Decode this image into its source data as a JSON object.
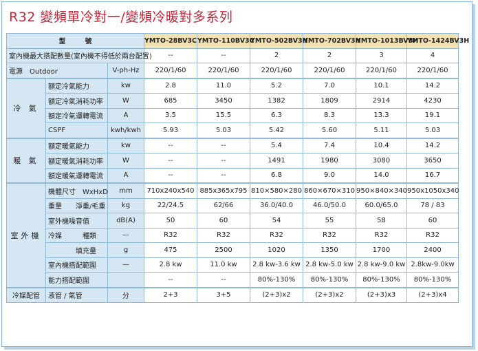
{
  "title": "R32  變頻單冷對一/變頻冷暖對多系列",
  "header": {
    "label": "型　　　號",
    "models": [
      "YMTO-28BV3C",
      "YMTO-110BV3C",
      "YMTO-502BV3H",
      "YMTO-702BV3H",
      "YMTO-1013BV3H",
      "YMTO-1424BV3H"
    ]
  },
  "rows": {
    "indoor_max": {
      "label": "室內機最大搭配數量(室內機不得低於兩台配置)",
      "values": [
        "--",
        "--",
        "2",
        "2",
        "3",
        "4"
      ]
    },
    "power": {
      "label1": "電源　Outdoor",
      "unit": "V-ph-Hz",
      "values": [
        "220/1/60",
        "220/1/60",
        "220/1/60",
        "220/1/60",
        "220/1/60",
        "220/1/60"
      ]
    },
    "cool": {
      "group": "冷 氣",
      "items": [
        {
          "label": "額定冷氣能力",
          "unit": "kw",
          "values": [
            "2.8",
            "11.0",
            "5.2",
            "7.0",
            "10.1",
            "14.2"
          ]
        },
        {
          "label": "額定冷氣消耗功率",
          "unit": "W",
          "values": [
            "685",
            "3450",
            "1382",
            "1809",
            "2914",
            "4230"
          ]
        },
        {
          "label": "額定冷氣運轉電流",
          "unit": "A",
          "values": [
            "3.5",
            "15.5",
            "6.3",
            "8.3",
            "13.3",
            "19.1"
          ]
        },
        {
          "label": "CSPF",
          "unit": "kwh/kwh",
          "values": [
            "5.93",
            "5.03",
            "5.42",
            "5.60",
            "5.11",
            "5.03"
          ]
        }
      ]
    },
    "heat": {
      "group": "暖 氣",
      "items": [
        {
          "label": "額定暖氣能力",
          "unit": "kw",
          "values": [
            "--",
            "--",
            "5.4",
            "7.4",
            "10.4",
            "14.2"
          ]
        },
        {
          "label": "額定暖氣消耗功率",
          "unit": "W",
          "values": [
            "--",
            "--",
            "1491",
            "1980",
            "3080",
            "3650"
          ]
        },
        {
          "label": "額定暖氣運轉電流",
          "unit": "A",
          "values": [
            "--",
            "--",
            "6.8",
            "9.0",
            "14.0",
            "16.7"
          ]
        }
      ]
    },
    "outdoor": {
      "group": "室外機",
      "items": [
        {
          "label": "機體尺寸　WxHxD",
          "unit": "mm",
          "values": [
            "710x240x540",
            "885x365x795",
            "810×580×280",
            "860×670×310",
            "950×840×340",
            "950x1050x340"
          ]
        },
        {
          "label": "重量　　淨重/毛重",
          "unit": "kg",
          "values": [
            "22/24.5",
            "62/66",
            "36.0/40.0",
            "46.0/50.0",
            "60.0/65.0",
            "78 / 83"
          ]
        },
        {
          "label": "室外機噪音值",
          "unit": "dB(A)",
          "values": [
            "50",
            "60",
            "54",
            "55",
            "58",
            "60"
          ]
        },
        {
          "label": "冷媒　　　種類",
          "unit": "—",
          "values": [
            "R32",
            "R32",
            "R32",
            "R32",
            "R32",
            "R32"
          ]
        },
        {
          "label": "　　　　填充量",
          "unit": "g",
          "values": [
            "475",
            "2500",
            "1020",
            "1350",
            "1700",
            "2400"
          ]
        },
        {
          "label": "室內機搭配範圍",
          "unit": "—",
          "values": [
            "2.8 kw",
            "11.0 kw",
            "2.8 kw-3.6 kw",
            "2.8 kw-5.0 kw",
            "2.8 kw-9.0 kw",
            "2.8kw-9.0kw"
          ]
        },
        {
          "label": "能力搭配範圍",
          "unit": "",
          "values": [
            "--",
            "--",
            "80%-130%",
            "80%-130%",
            "80%-130%",
            "80%-130%"
          ]
        }
      ]
    },
    "refpipe": {
      "group": "冷媒配管",
      "label": "液管 / 氣管",
      "unit": "分",
      "values": [
        "2+3",
        "3+5",
        "(2+3)x2",
        "(2+3)x2",
        "(2+3)x3",
        "(2+3)x4"
      ]
    }
  }
}
